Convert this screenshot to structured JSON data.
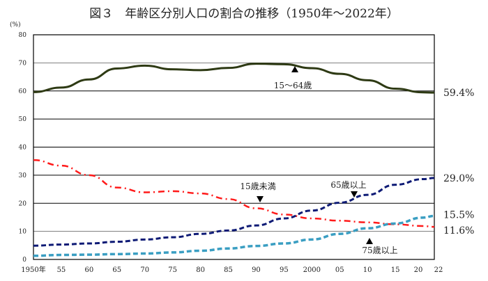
{
  "chart_data": {
    "type": "line",
    "title": "図３　年齢区分別人口の割合の推移（1950年～2022年）",
    "ylabel": "(%)",
    "xlabel": "",
    "ylim": [
      0,
      80
    ],
    "xlim": [
      1950,
      2022
    ],
    "yticks": [
      0,
      10,
      20,
      30,
      40,
      50,
      60,
      70,
      80
    ],
    "xticks": [
      {
        "x": 1950,
        "label": "1950年"
      },
      {
        "x": 1955,
        "label": "55"
      },
      {
        "x": 1960,
        "label": "60"
      },
      {
        "x": 1965,
        "label": "65"
      },
      {
        "x": 1970,
        "label": "70"
      },
      {
        "x": 1975,
        "label": "75"
      },
      {
        "x": 1980,
        "label": "80"
      },
      {
        "x": 1985,
        "label": "85"
      },
      {
        "x": 1990,
        "label": "90"
      },
      {
        "x": 1995,
        "label": "95"
      },
      {
        "x": 2000,
        "label": "2000"
      },
      {
        "x": 2005,
        "label": "05"
      },
      {
        "x": 2010,
        "label": "10"
      },
      {
        "x": 2015,
        "label": "15"
      },
      {
        "x": 2020,
        "label": "20"
      },
      {
        "x": 2022,
        "label": "22"
      }
    ],
    "grid": true,
    "x": [
      1950,
      1955,
      1960,
      1965,
      1970,
      1975,
      1980,
      1985,
      1990,
      1995,
      2000,
      2005,
      2010,
      2015,
      2020,
      2022
    ],
    "series": [
      {
        "name": "15～64歳",
        "color": "#2e3a14",
        "style": "solid",
        "end_label": "59.4%",
        "values": [
          59.6,
          61.2,
          64.1,
          68.0,
          69.0,
          67.7,
          67.4,
          68.2,
          69.7,
          69.5,
          68.1,
          66.1,
          63.8,
          60.8,
          59.5,
          59.4
        ]
      },
      {
        "name": "15歳未満",
        "color": "#ff1a1a",
        "style": "dashdot",
        "end_label": "11.6%",
        "values": [
          35.4,
          33.4,
          30.0,
          25.6,
          23.9,
          24.3,
          23.5,
          21.5,
          18.2,
          16.0,
          14.6,
          13.8,
          13.2,
          12.5,
          11.9,
          11.6
        ]
      },
      {
        "name": "65歳以上",
        "color": "#0d1a75",
        "style": "dashed",
        "end_label": "29.0%",
        "values": [
          4.9,
          5.3,
          5.7,
          6.3,
          7.1,
          7.9,
          9.1,
          10.3,
          12.1,
          14.6,
          17.4,
          20.2,
          23.0,
          26.6,
          28.6,
          29.0
        ]
      },
      {
        "name": "75歳以上",
        "color": "#3a9ec2",
        "style": "dashed",
        "end_label": "15.5%",
        "values": [
          1.3,
          1.6,
          1.7,
          1.9,
          2.1,
          2.5,
          3.1,
          3.9,
          4.8,
          5.7,
          7.1,
          9.1,
          11.1,
          12.8,
          14.9,
          15.5
        ]
      }
    ]
  }
}
